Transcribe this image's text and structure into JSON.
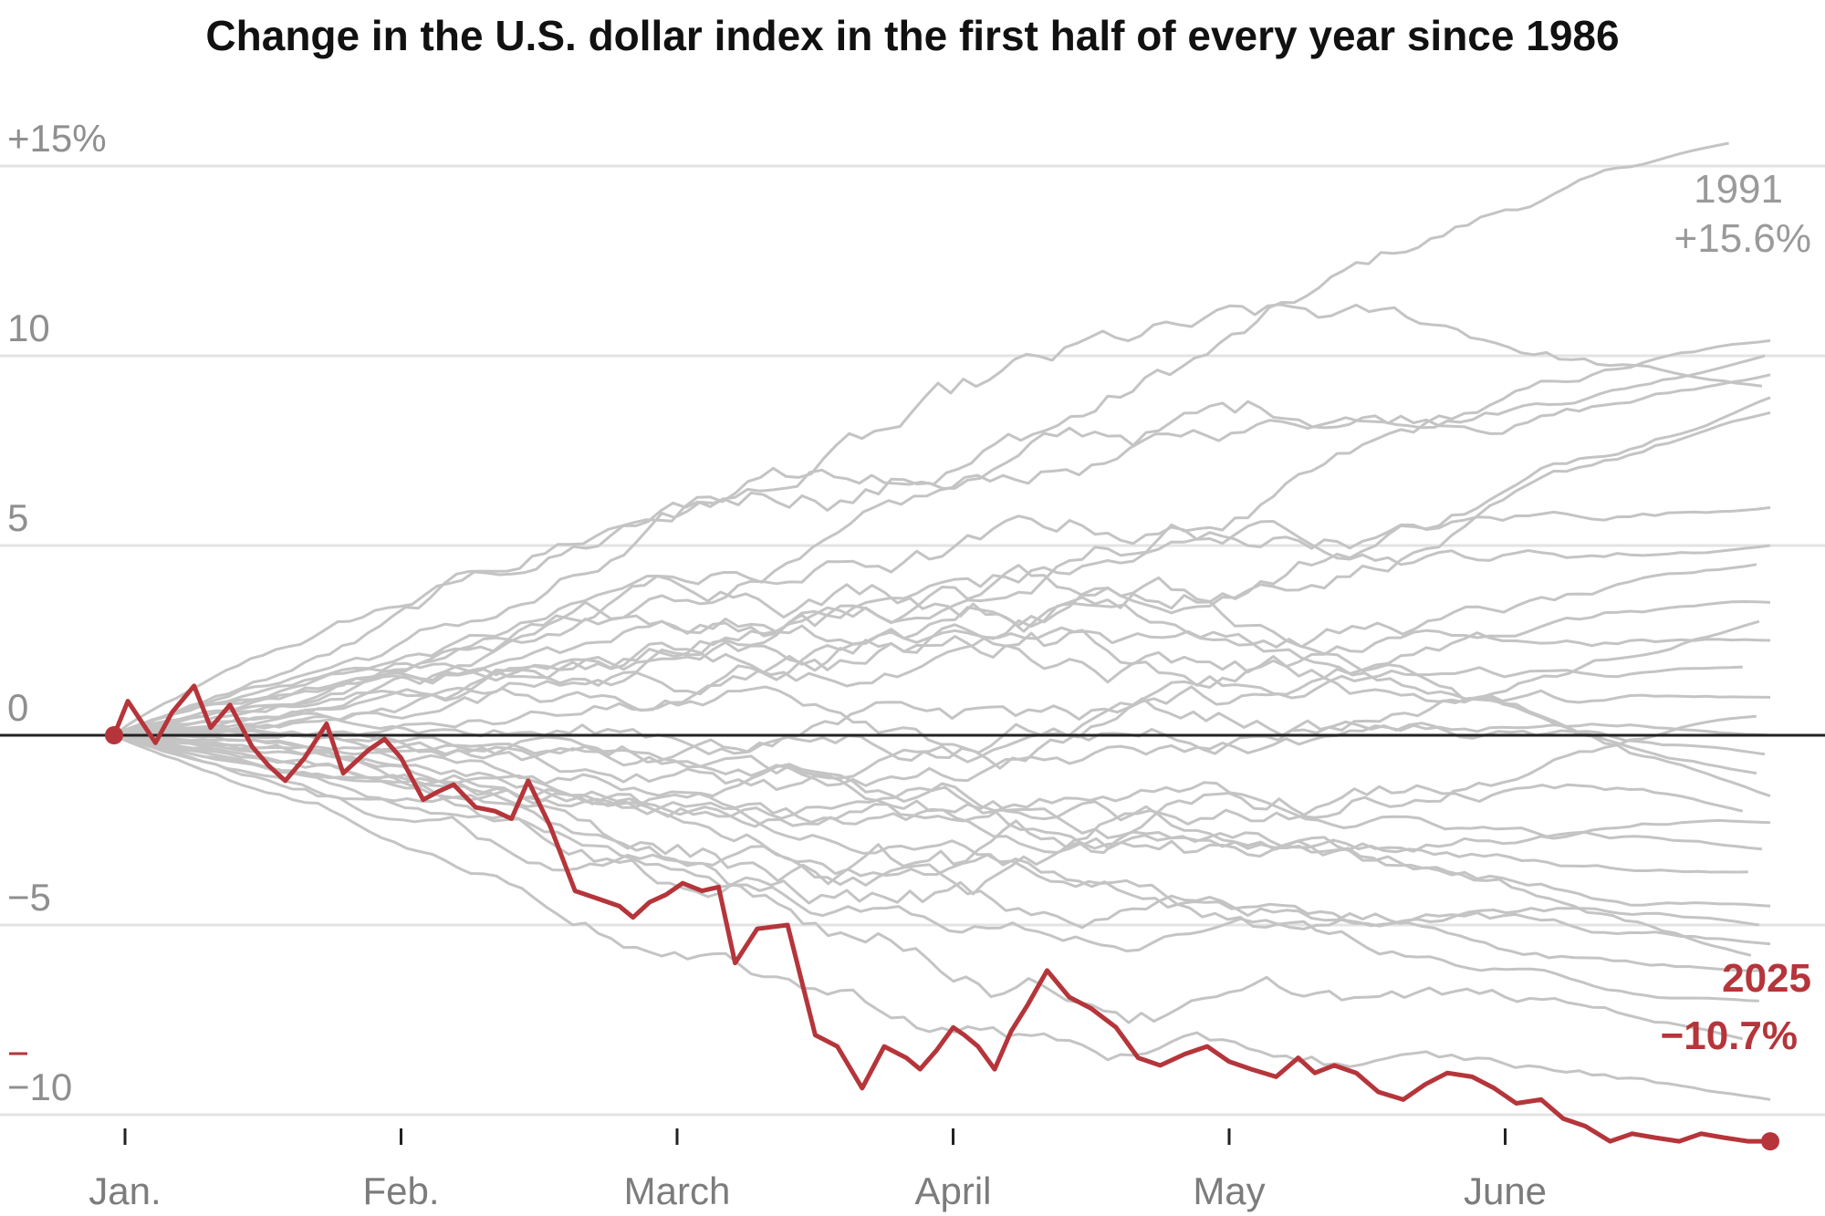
{
  "chart_data": {
    "type": "line",
    "title": "Change in the U.S. dollar index in the first half of every year since 1986",
    "xlabel": "",
    "ylabel": "",
    "x_unit": "months of the year",
    "xlim": [
      0,
      6
    ],
    "ylim": [
      -10,
      15
    ],
    "y_ticks": [
      {
        "value": 15,
        "label": "+15%"
      },
      {
        "value": 10,
        "label": "10"
      },
      {
        "value": 5,
        "label": "5"
      },
      {
        "value": 0,
        "label": "0"
      },
      {
        "value": -5,
        "label": "−5"
      },
      {
        "value": -10,
        "label": "−10"
      }
    ],
    "x_ticks": [
      {
        "value": 0,
        "label": "Jan."
      },
      {
        "value": 1,
        "label": "Feb."
      },
      {
        "value": 2,
        "label": "March"
      },
      {
        "value": 3,
        "label": "April"
      },
      {
        "value": 4,
        "label": "May"
      },
      {
        "value": 5,
        "label": "June"
      }
    ],
    "grid": true,
    "legend": "none",
    "colors": {
      "highlight": "#b5353a",
      "other_years": "#c4c4c4",
      "zero_line": "#222222",
      "grid": "#e3e3e3"
    },
    "highlight_series": {
      "name": "2025",
      "color": "#b5353a",
      "label_value": "−10.7%",
      "x": [
        0,
        0.05,
        0.15,
        0.21,
        0.29,
        0.35,
        0.42,
        0.5,
        0.56,
        0.62,
        0.69,
        0.77,
        0.83,
        0.92,
        0.98,
        1.04,
        1.12,
        1.17,
        1.23,
        1.31,
        1.38,
        1.44,
        1.5,
        1.58,
        1.67,
        1.75,
        1.83,
        1.88,
        1.94,
        2.0,
        2.06,
        2.13,
        2.19,
        2.25,
        2.33,
        2.44,
        2.54,
        2.62,
        2.71,
        2.79,
        2.87,
        2.92,
        2.98,
        3.04,
        3.08,
        3.13,
        3.19,
        3.25,
        3.31,
        3.38,
        3.46,
        3.54,
        3.63,
        3.71,
        3.79,
        3.88,
        3.96,
        4.04,
        4.12,
        4.21,
        4.29,
        4.35,
        4.42,
        4.5,
        4.58,
        4.67,
        4.75,
        4.83,
        4.92,
        5.0,
        5.08,
        5.17,
        5.25,
        5.33,
        5.42,
        5.5,
        5.58,
        5.67,
        5.75,
        5.83,
        5.92,
        6.0
      ],
      "y": [
        0,
        0.9,
        -0.2,
        0.6,
        1.3,
        0.2,
        0.8,
        -0.3,
        -0.8,
        -1.2,
        -0.6,
        0.3,
        -1.0,
        -0.4,
        -0.1,
        -0.6,
        -1.7,
        -1.5,
        -1.3,
        -1.9,
        -2.0,
        -2.2,
        -1.2,
        -2.4,
        -4.1,
        -4.3,
        -4.5,
        -4.8,
        -4.4,
        -4.2,
        -3.9,
        -4.1,
        -4.0,
        -6.0,
        -5.1,
        -5.0,
        -7.9,
        -8.2,
        -9.3,
        -8.2,
        -8.5,
        -8.8,
        -8.3,
        -7.7,
        -7.9,
        -8.2,
        -8.8,
        -7.8,
        -7.1,
        -6.2,
        -6.9,
        -7.2,
        -7.7,
        -8.5,
        -8.7,
        -8.4,
        -8.2,
        -8.6,
        -8.8,
        -9.0,
        -8.5,
        -8.9,
        -8.7,
        -8.9,
        -9.4,
        -9.6,
        -9.2,
        -8.9,
        -9.0,
        -9.3,
        -9.7,
        -9.6,
        -10.1,
        -10.3,
        -10.7,
        -10.5,
        -10.6,
        -10.7,
        -10.5,
        -10.6,
        -10.7,
        -10.7
      ]
    },
    "other_series_label": {
      "name": "1991",
      "label_value": "+15.6%"
    }
  }
}
